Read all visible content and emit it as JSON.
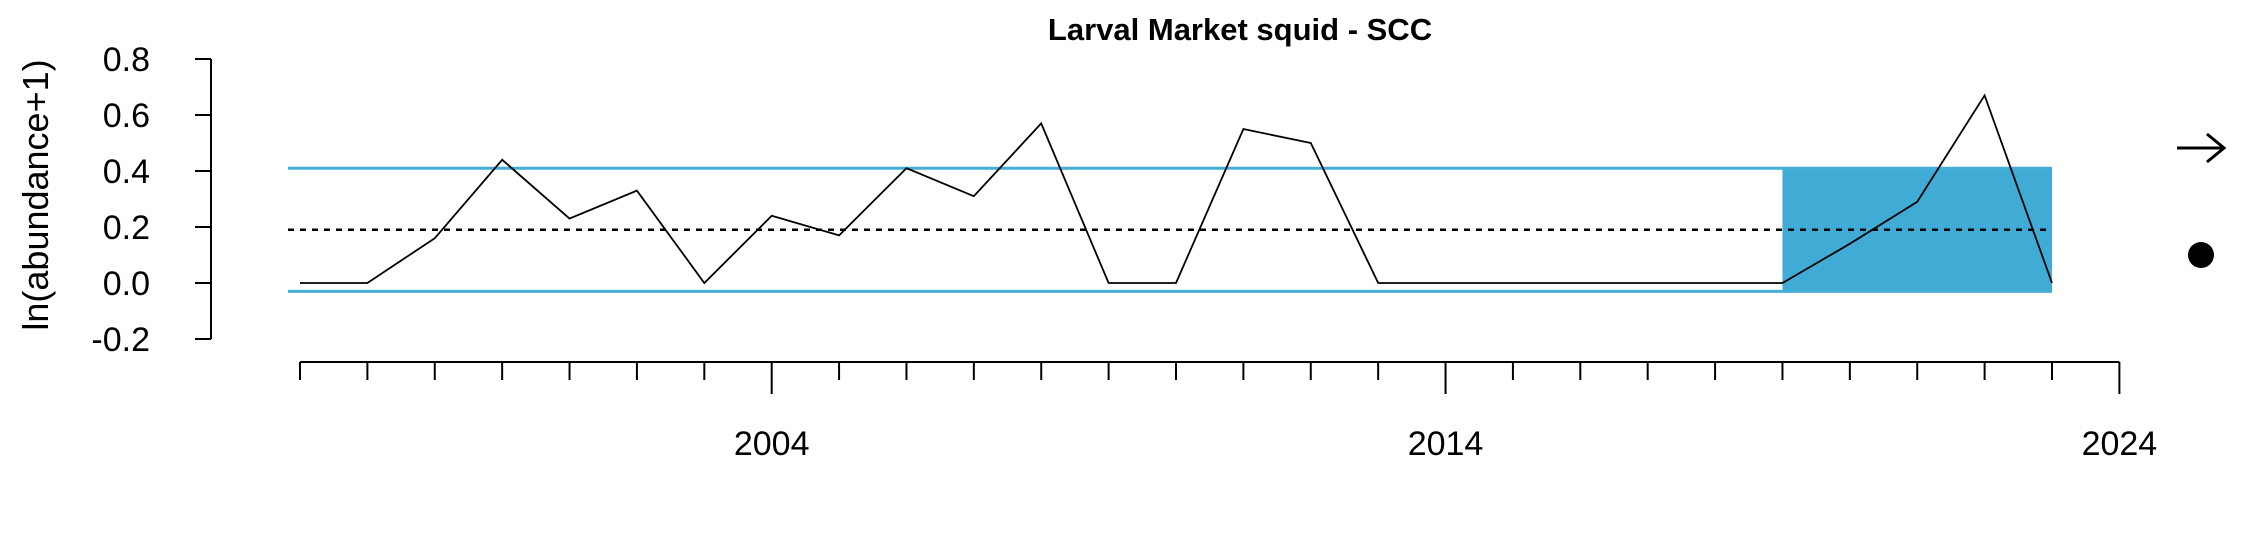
{
  "chart_data": {
    "type": "line",
    "title": "Larval Market squid - SCC",
    "xlabel": "",
    "ylabel": "ln(abundance+1)",
    "x": [
      1997,
      1998,
      1999,
      2000,
      2001,
      2002,
      2003,
      2004,
      2005,
      2006,
      2007,
      2008,
      2009,
      2010,
      2011,
      2012,
      2013,
      2014,
      2015,
      2016,
      2017,
      2018,
      2019,
      2020,
      2021,
      2022,
      2023
    ],
    "series": [
      {
        "values": [
          0,
          0,
          0.16,
          0.44,
          0.23,
          0.33,
          0,
          0.24,
          0.17,
          0.41,
          0.31,
          0.57,
          0,
          0,
          0.55,
          0.5,
          0,
          0,
          0,
          0,
          0,
          0,
          0,
          0.14,
          0.29,
          0.67,
          0
        ]
      }
    ],
    "xlim": [
      1997,
      2024
    ],
    "ylim": [
      -0.2,
      0.8
    ],
    "x_ticks": [
      2004,
      2014,
      2024
    ],
    "y_ticks": [
      -0.2,
      0.0,
      0.2,
      0.4,
      0.6,
      0.8
    ],
    "y_tick_labels": [
      "-0.2",
      "0.0",
      "0.2",
      "0.4",
      "0.6",
      "0.8"
    ],
    "x_tick_labels": [
      "2004",
      "2014",
      "2024"
    ],
    "mean": 0.19,
    "upper_sd": 0.41,
    "lower_sd": -0.03,
    "highlight_period": [
      2019,
      2023
    ],
    "colors": {
      "line": "#000000",
      "sd_lines": "#44aed7",
      "highlight": "#40acd6",
      "mean": "#000000"
    },
    "trend_indicator_icon": "right-arrow-icon",
    "mean_indicator_icon": "filled-circle-icon"
  }
}
